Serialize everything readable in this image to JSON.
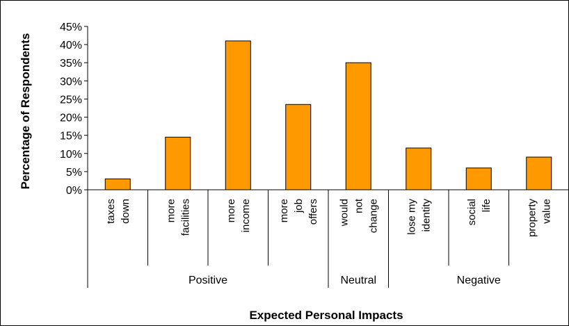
{
  "chart_data": {
    "type": "bar",
    "title": "",
    "xlabel": "Expected Personal Impacts",
    "ylabel": "Percentage of Respondents",
    "ylim": [
      0,
      45
    ],
    "yticks": [
      "0%",
      "5%",
      "10%",
      "15%",
      "20%",
      "25%",
      "30%",
      "35%",
      "40%",
      "45%"
    ],
    "bar_color": "#FF9900",
    "gridlines": false,
    "categories": [
      [
        "taxes",
        "down"
      ],
      [
        "more",
        "facilities"
      ],
      [
        "more",
        "income"
      ],
      [
        "more",
        "job",
        "offers"
      ],
      [
        "would",
        "not",
        "change"
      ],
      [
        "lose my",
        "identity"
      ],
      [
        "social",
        "life"
      ],
      [
        "property",
        "value"
      ]
    ],
    "values": [
      3,
      14.5,
      41,
      23.5,
      35,
      11.5,
      6,
      9
    ],
    "groups": [
      {
        "label": "Positive",
        "count": 4
      },
      {
        "label": "Neutral",
        "count": 1
      },
      {
        "label": "Negative",
        "count": 3
      }
    ]
  }
}
